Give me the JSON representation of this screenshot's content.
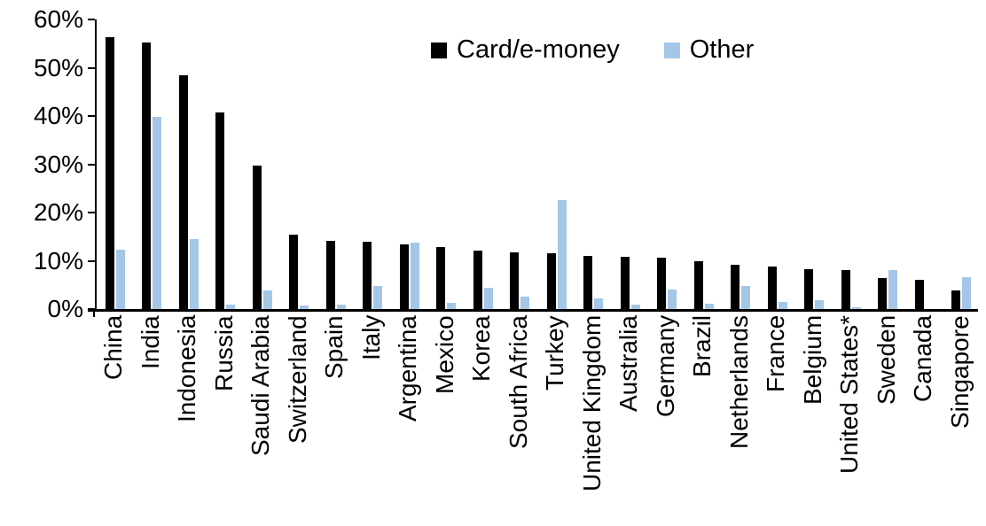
{
  "chart_data": {
    "type": "bar",
    "title": "",
    "xlabel": "",
    "ylabel": "",
    "categories": [
      "China",
      "India",
      "Indonesia",
      "Russia",
      "Saudi Arabia",
      "Switzerland",
      "Spain",
      "Italy",
      "Argentina",
      "Mexico",
      "Korea",
      "South Africa",
      "Turkey",
      "United Kingdom",
      "Australia",
      "Germany",
      "Brazil",
      "Netherlands",
      "France",
      "Belgium",
      "United States*",
      "Sweden",
      "Canada",
      "Singapore"
    ],
    "series": [
      {
        "name": "Card/e-money",
        "color": "#000000",
        "values": [
          56.4,
          55.2,
          48.4,
          40.7,
          29.8,
          15.5,
          14.1,
          14.0,
          13.4,
          12.8,
          12.2,
          11.7,
          11.6,
          11.1,
          10.9,
          10.7,
          10.0,
          9.2,
          8.8,
          8.2,
          8.0,
          6.5,
          6.0,
          3.8
        ]
      },
      {
        "name": "Other",
        "color": "#A4C7E8",
        "values": [
          12.3,
          39.8,
          14.5,
          1.0,
          3.8,
          0.7,
          1.0,
          4.7,
          13.8,
          1.3,
          4.5,
          2.5,
          22.5,
          2.2,
          1.0,
          4.0,
          1.2,
          4.8,
          1.4,
          1.9,
          0.3,
          8.0,
          0,
          6.7
        ]
      }
    ],
    "ylim": [
      0,
      60
    ],
    "ytick_step": 10,
    "ytick_labels": [
      "0%",
      "10%",
      "20%",
      "30%",
      "40%",
      "50%",
      "60%"
    ],
    "grid": false,
    "legend_position": "top-center"
  }
}
